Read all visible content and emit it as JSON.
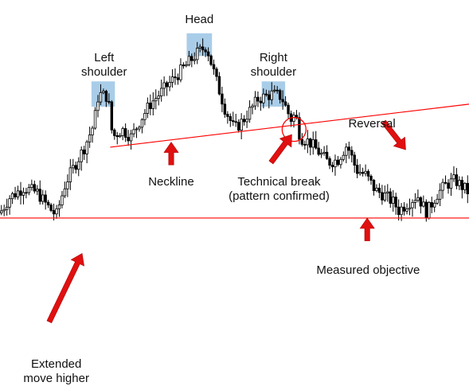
{
  "chart_data": {
    "type": "candlestick",
    "pattern": "head-and-shoulders",
    "title": "",
    "xlabel": "",
    "ylabel": "",
    "axes_visible": false,
    "grid": false,
    "ylim": [
      0,
      100
    ],
    "colors": {
      "candles": "#000000",
      "lines": "#ff0000",
      "arrows": "#e01010",
      "highlight": "#a9cde8"
    },
    "levels": {
      "neckline": {
        "label": "Neckline",
        "start": [
          0.235,
          56
        ],
        "end": [
          1.0,
          73
        ]
      },
      "measured_objective": {
        "label": "Measured objective",
        "y": 28
      }
    },
    "price_path": [
      [
        0.0,
        30
      ],
      [
        0.02,
        36
      ],
      [
        0.05,
        40
      ],
      [
        0.08,
        38
      ],
      [
        0.1,
        33
      ],
      [
        0.12,
        29
      ],
      [
        0.14,
        42
      ],
      [
        0.16,
        49
      ],
      [
        0.18,
        56
      ],
      [
        0.2,
        65
      ],
      [
        0.21,
        77
      ],
      [
        0.23,
        76
      ],
      [
        0.24,
        60
      ],
      [
        0.26,
        63
      ],
      [
        0.28,
        60
      ],
      [
        0.3,
        67
      ],
      [
        0.32,
        73
      ],
      [
        0.35,
        79
      ],
      [
        0.38,
        85
      ],
      [
        0.4,
        89
      ],
      [
        0.42,
        93
      ],
      [
        0.44,
        96
      ],
      [
        0.46,
        83
      ],
      [
        0.48,
        71
      ],
      [
        0.5,
        63
      ],
      [
        0.52,
        67
      ],
      [
        0.55,
        75
      ],
      [
        0.58,
        77
      ],
      [
        0.6,
        76
      ],
      [
        0.62,
        67
      ],
      [
        0.63,
        69
      ],
      [
        0.64,
        60
      ],
      [
        0.66,
        58
      ],
      [
        0.68,
        54
      ],
      [
        0.7,
        50
      ],
      [
        0.72,
        51
      ],
      [
        0.74,
        57
      ],
      [
        0.76,
        47
      ],
      [
        0.78,
        45
      ],
      [
        0.8,
        39
      ],
      [
        0.82,
        37
      ],
      [
        0.84,
        34
      ],
      [
        0.85,
        31
      ],
      [
        0.87,
        34
      ],
      [
        0.89,
        37
      ],
      [
        0.91,
        30
      ],
      [
        0.93,
        37
      ],
      [
        0.95,
        41
      ],
      [
        0.97,
        43
      ],
      [
        1.0,
        38
      ]
    ],
    "highlights": [
      {
        "x0": 0.195,
        "x1": 0.245,
        "y0": 72,
        "y1": 82
      },
      {
        "x0": 0.398,
        "x1": 0.452,
        "y0": 92,
        "y1": 101
      },
      {
        "x0": 0.558,
        "x1": 0.608,
        "y0": 72,
        "y1": 82
      }
    ],
    "annotations": [
      {
        "key": "left_shoulder",
        "lines": [
          "Left",
          "shoulder"
        ],
        "x": 0.222,
        "y": 94
      },
      {
        "key": "head",
        "lines": [
          "Head"
        ],
        "x": 0.425,
        "y": 109
      },
      {
        "key": "right_shoulder",
        "lines": [
          "Right",
          "shoulder"
        ],
        "x": 0.583,
        "y": 94
      },
      {
        "key": "neckline_label",
        "lines": [
          "Neckline"
        ],
        "x": 0.365,
        "y": 45
      },
      {
        "key": "technical_break",
        "lines": [
          "Technical break",
          "(pattern confirmed)"
        ],
        "x": 0.595,
        "y": 45
      },
      {
        "key": "reversal",
        "lines": [
          "Reversal"
        ],
        "x": 0.793,
        "y": 68
      },
      {
        "key": "measured_objective_label",
        "lines": [
          "Measured objective"
        ],
        "x": 0.785,
        "y": 10
      },
      {
        "key": "extended_move",
        "lines": [
          "Extended",
          "move higher"
        ],
        "x": 0.12,
        "y": -27
      }
    ],
    "arrows": [
      {
        "name": "neckline-arrow",
        "from": [
          0.365,
          49
        ],
        "to": [
          0.365,
          58
        ]
      },
      {
        "name": "break-arrow",
        "from": [
          0.578,
          50
        ],
        "to": [
          0.622,
          61
        ]
      },
      {
        "name": "reversal-arrow",
        "from": [
          0.818,
          66
        ],
        "to": [
          0.865,
          55
        ]
      },
      {
        "name": "objective-arrow",
        "from": [
          0.783,
          19
        ],
        "to": [
          0.783,
          28
        ]
      },
      {
        "name": "extended-move-arrow",
        "from": [
          0.105,
          -13
        ],
        "to": [
          0.175,
          14
        ]
      }
    ],
    "break_marker": {
      "x": 0.627,
      "y": 63
    }
  }
}
